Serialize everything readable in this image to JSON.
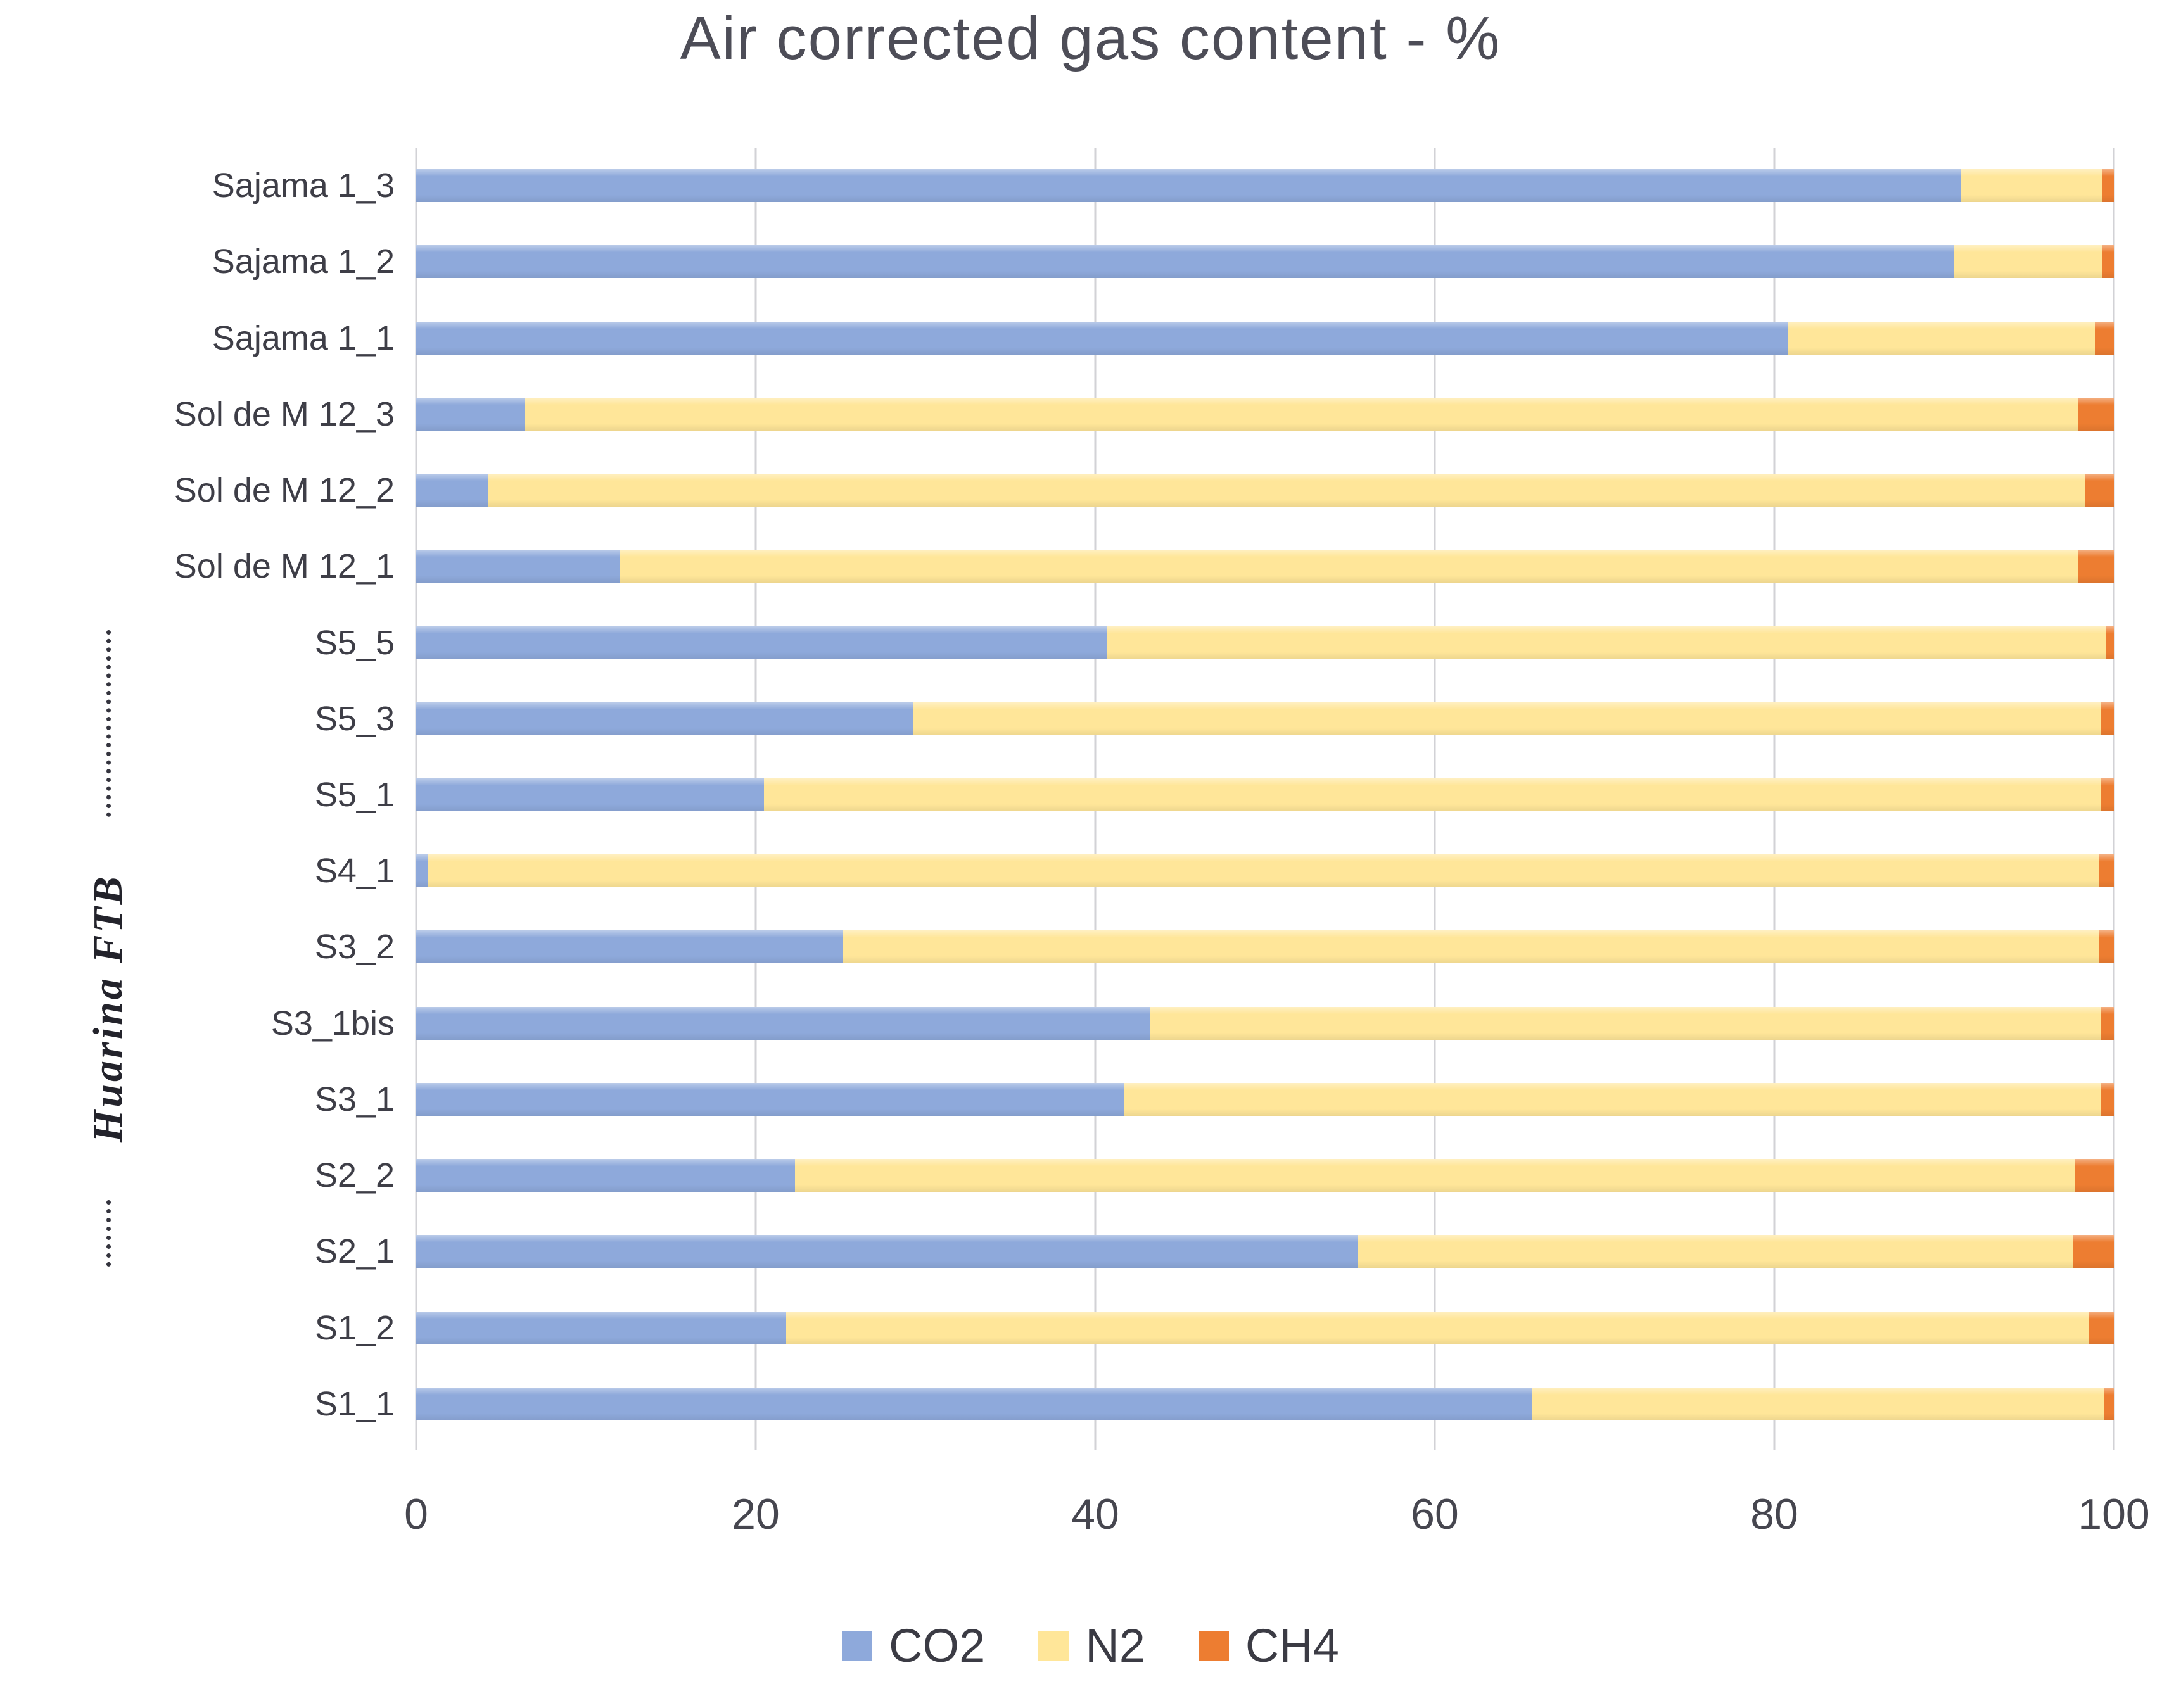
{
  "chart_data": {
    "type": "bar",
    "orientation": "horizontal-stacked",
    "title": "Air corrected gas content - %",
    "group_label": "Huarina FTB",
    "group_label_applies_to": [
      "S5_5",
      "S5_3",
      "S5_1",
      "S4_1",
      "S3_2",
      "S3_1bis",
      "S3_1",
      "S2_2",
      "S2_1",
      "S1_2",
      "S1_1"
    ],
    "categories": [
      "Sajama 1_3",
      "Sajama 1_2",
      "Sajama 1_1",
      "Sol de M 12_3",
      "Sol de M 12_2",
      "Sol de M 12_1",
      "S5_5",
      "S5_3",
      "S5_1",
      "S4_1",
      "S3_2",
      "S3_1bis",
      "S3_1",
      "S2_2",
      "S2_1",
      "S1_2",
      "S1_1"
    ],
    "series": [
      {
        "name": "CO2",
        "color": "#8EA9DB",
        "values": [
          91.0,
          90.6,
          80.8,
          6.4,
          4.2,
          12.0,
          40.7,
          29.3,
          20.5,
          0.7,
          25.1,
          43.2,
          41.7,
          22.3,
          55.5,
          21.8,
          65.7
        ]
      },
      {
        "name": "N2",
        "color": "#FFE699",
        "values": [
          8.3,
          8.7,
          18.1,
          91.5,
          94.1,
          85.9,
          58.8,
          69.9,
          78.7,
          98.4,
          74.0,
          56.0,
          57.5,
          75.4,
          42.1,
          76.7,
          33.7
        ]
      },
      {
        "name": "CH4",
        "color": "#ED7D31",
        "values": [
          0.7,
          0.7,
          1.1,
          2.1,
          1.7,
          2.1,
          0.5,
          0.8,
          0.8,
          0.9,
          0.9,
          0.8,
          0.8,
          2.3,
          2.4,
          1.5,
          0.6
        ]
      }
    ],
    "x_ticks": [
      0,
      20,
      40,
      60,
      80,
      100
    ],
    "xlim": [
      0,
      100
    ],
    "grid": true,
    "gridline_color": "#d2d2d6",
    "legend_position": "bottom",
    "legend": [
      "CO2",
      "N2",
      "CH4"
    ]
  }
}
